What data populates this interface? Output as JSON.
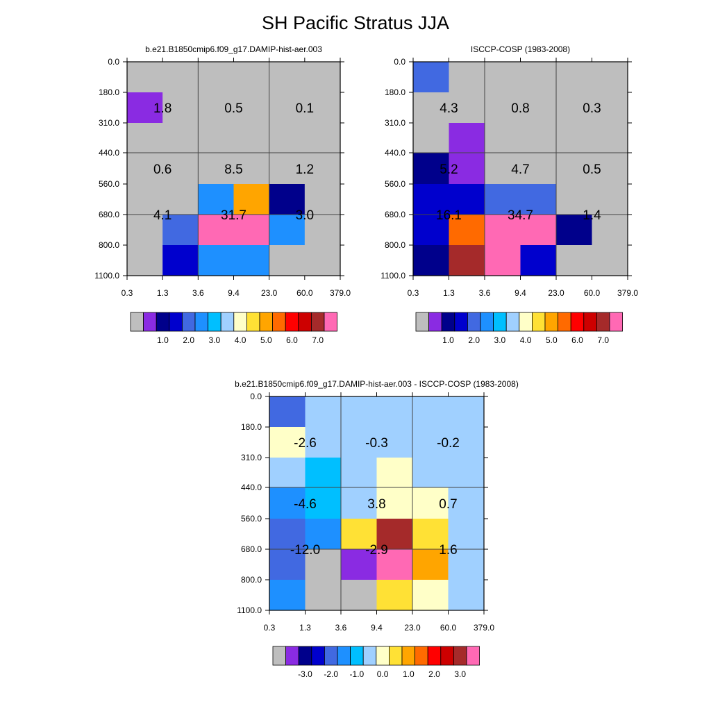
{
  "title": "SH Pacific Stratus JJA",
  "color_scales": {
    "abs": {
      "colors": [
        "#bebebe",
        "#8a2be2",
        "#00008b",
        "#0000cd",
        "#4169e1",
        "#1e90ff",
        "#00bfff",
        "#a0d0ff",
        "#ffffc8",
        "#ffe135",
        "#ffa500",
        "#ff6a00",
        "#ff0000",
        "#cd0000",
        "#a52a2a",
        "#ff69b4"
      ],
      "labels": [
        "1.0",
        "2.0",
        "3.0",
        "4.0",
        "5.0",
        "6.0",
        "7.0"
      ]
    },
    "diff": {
      "colors": [
        "#bebebe",
        "#8a2be2",
        "#00008b",
        "#0000cd",
        "#4169e1",
        "#1e90ff",
        "#00bfff",
        "#a0d0ff",
        "#ffffc8",
        "#ffe135",
        "#ffa500",
        "#ff6a00",
        "#ff0000",
        "#cd0000",
        "#a52a2a",
        "#ff69b4"
      ],
      "labels": [
        "-3.0",
        "-2.0",
        "-1.0",
        "0.0",
        "1.0",
        "2.0",
        "3.0"
      ]
    }
  },
  "chart_data": [
    {
      "type": "heatmap",
      "title": "b.e21.B1850cmip6.f09_g17.DAMIP-hist-aer.003",
      "scale": "abs",
      "x_tick_labels": [
        "0.3",
        "1.3",
        "3.6",
        "9.4",
        "23.0",
        "60.0",
        "379.0"
      ],
      "y_tick_labels": [
        "0.0",
        "180.0",
        "310.0",
        "440.0",
        "560.0",
        "680.0",
        "800.0",
        "1100.0"
      ],
      "cell_color_index": [
        [
          0,
          0,
          0,
          0,
          0,
          0
        ],
        [
          1,
          0,
          0,
          0,
          0,
          0
        ],
        [
          0,
          0,
          0,
          0,
          0,
          0
        ],
        [
          0,
          0,
          0,
          0,
          0,
          0
        ],
        [
          0,
          0,
          5,
          10,
          2,
          0
        ],
        [
          0,
          4,
          15,
          15,
          5,
          0
        ],
        [
          0,
          3,
          5,
          5,
          0,
          0
        ]
      ],
      "annotations": [
        {
          "col": 0,
          "row": 0,
          "text": "1.8"
        },
        {
          "col": 1,
          "row": 0,
          "text": "0.5"
        },
        {
          "col": 2,
          "row": 0,
          "text": "0.1"
        },
        {
          "col": 0,
          "row": 1,
          "text": "0.6"
        },
        {
          "col": 1,
          "row": 1,
          "text": "8.5"
        },
        {
          "col": 2,
          "row": 1,
          "text": "1.2"
        },
        {
          "col": 0,
          "row": 2,
          "text": "4.1"
        },
        {
          "col": 1,
          "row": 2,
          "text": "31.7"
        },
        {
          "col": 2,
          "row": 2,
          "text": "3.0"
        }
      ]
    },
    {
      "type": "heatmap",
      "title": "ISCCP-COSP (1983-2008)",
      "scale": "abs",
      "x_tick_labels": [
        "0.3",
        "1.3",
        "3.6",
        "9.4",
        "23.0",
        "60.0",
        "379.0"
      ],
      "y_tick_labels": [
        "0.0",
        "180.0",
        "310.0",
        "440.0",
        "560.0",
        "680.0",
        "800.0",
        "1100.0"
      ],
      "cell_color_index": [
        [
          4,
          0,
          0,
          0,
          0,
          0
        ],
        [
          0,
          0,
          0,
          0,
          0,
          0
        ],
        [
          0,
          1,
          0,
          0,
          0,
          0
        ],
        [
          2,
          1,
          0,
          0,
          0,
          0
        ],
        [
          3,
          3,
          4,
          4,
          0,
          0
        ],
        [
          3,
          11,
          15,
          15,
          2,
          0
        ],
        [
          2,
          14,
          15,
          3,
          0,
          0
        ]
      ],
      "annotations": [
        {
          "col": 0,
          "row": 0,
          "text": "4.3"
        },
        {
          "col": 1,
          "row": 0,
          "text": "0.8"
        },
        {
          "col": 2,
          "row": 0,
          "text": "0.3"
        },
        {
          "col": 0,
          "row": 1,
          "text": "5.2"
        },
        {
          "col": 1,
          "row": 1,
          "text": "4.7"
        },
        {
          "col": 2,
          "row": 1,
          "text": "0.5"
        },
        {
          "col": 0,
          "row": 2,
          "text": "16.1"
        },
        {
          "col": 1,
          "row": 2,
          "text": "34.7"
        },
        {
          "col": 2,
          "row": 2,
          "text": "1.4"
        }
      ]
    },
    {
      "type": "heatmap",
      "title": "b.e21.B1850cmip6.f09_g17.DAMIP-hist-aer.003 - ISCCP-COSP (1983-2008)",
      "scale": "diff",
      "x_tick_labels": [
        "0.3",
        "1.3",
        "3.6",
        "9.4",
        "23.0",
        "60.0",
        "379.0"
      ],
      "y_tick_labels": [
        "0.0",
        "180.0",
        "310.0",
        "440.0",
        "560.0",
        "680.0",
        "800.0",
        "1100.0"
      ],
      "cell_color_index": [
        [
          4,
          7,
          7,
          7,
          7,
          7
        ],
        [
          8,
          7,
          7,
          7,
          7,
          7
        ],
        [
          7,
          6,
          7,
          8,
          7,
          7
        ],
        [
          5,
          6,
          7,
          8,
          8,
          7
        ],
        [
          4,
          5,
          9,
          14,
          9,
          7
        ],
        [
          4,
          0,
          1,
          15,
          10,
          7
        ],
        [
          5,
          0,
          0,
          9,
          8,
          7
        ]
      ],
      "annotations": [
        {
          "col": 0,
          "row": 0,
          "text": "-2.6"
        },
        {
          "col": 1,
          "row": 0,
          "text": "-0.3"
        },
        {
          "col": 2,
          "row": 0,
          "text": "-0.2"
        },
        {
          "col": 0,
          "row": 1,
          "text": "-4.6"
        },
        {
          "col": 1,
          "row": 1,
          "text": "3.8"
        },
        {
          "col": 2,
          "row": 1,
          "text": "0.7"
        },
        {
          "col": 0,
          "row": 2,
          "text": "-12.0"
        },
        {
          "col": 1,
          "row": 2,
          "text": "-2.9"
        },
        {
          "col": 2,
          "row": 2,
          "text": "1.6"
        }
      ]
    }
  ]
}
